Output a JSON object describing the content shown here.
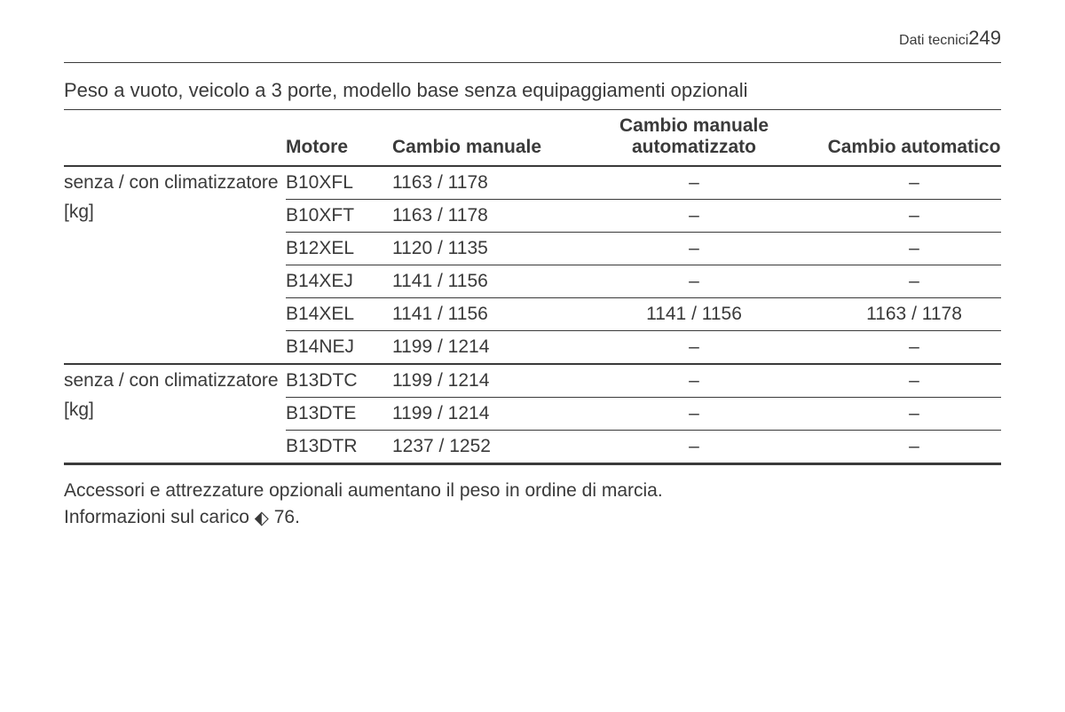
{
  "header": {
    "section": "Dati tecnici",
    "page": "249"
  },
  "table": {
    "title": "Peso a vuoto, veicolo a 3 porte, modello base senza equipaggiamenti opzionali",
    "columns": {
      "engine": "Motore",
      "manual": "Cambio manuale",
      "auto_manual": "Cambio manuale automatizzato",
      "automatic": "Cambio automatico"
    },
    "row_label": {
      "line1": "senza / con climatizzatore",
      "line2": "[kg]"
    },
    "group1": [
      {
        "engine": "B10XFL",
        "manual": "1163 / 1178",
        "auto_manual": "–",
        "automatic": "–"
      },
      {
        "engine": "B10XFT",
        "manual": "1163 / 1178",
        "auto_manual": "–",
        "automatic": "–"
      },
      {
        "engine": "B12XEL",
        "manual": "1120 / 1135",
        "auto_manual": "–",
        "automatic": "–"
      },
      {
        "engine": "B14XEJ",
        "manual": "1141 / 1156",
        "auto_manual": "–",
        "automatic": "–"
      },
      {
        "engine": "B14XEL",
        "manual": "1141 / 1156",
        "auto_manual": "1141 / 1156",
        "automatic": "1163 / 1178"
      },
      {
        "engine": "B14NEJ",
        "manual": "1199 / 1214",
        "auto_manual": "–",
        "automatic": "–"
      }
    ],
    "group2": [
      {
        "engine": "B13DTC",
        "manual": "1199 / 1214",
        "auto_manual": "–",
        "automatic": "–"
      },
      {
        "engine": "B13DTE",
        "manual": "1199 / 1214",
        "auto_manual": "–",
        "automatic": "–"
      },
      {
        "engine": "B13DTR",
        "manual": "1237 / 1252",
        "auto_manual": "–",
        "automatic": "–"
      }
    ]
  },
  "footnotes": {
    "line1": "Accessori e attrezzature opzionali aumentano il peso in ordine di marcia.",
    "line2_prefix": "Informazioni sul carico ",
    "line2_ref": "76",
    "line2_suffix": "."
  },
  "colors": {
    "text": "#3a3a3a",
    "bg": "#ffffff",
    "rule": "#3a3a3a"
  }
}
